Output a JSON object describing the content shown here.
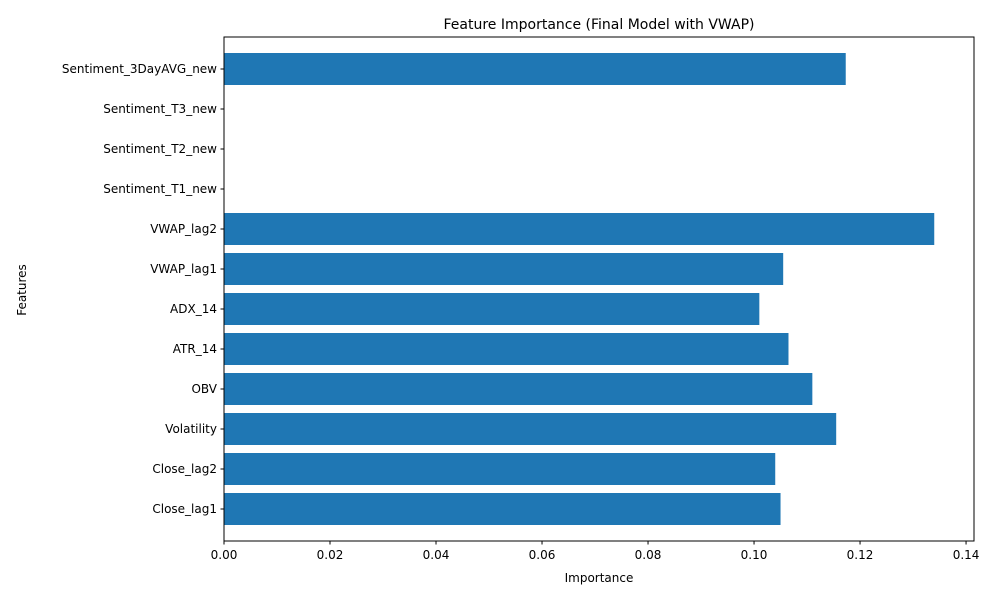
{
  "chart_data": {
    "type": "bar",
    "orientation": "horizontal",
    "title": "Feature Importance (Final Model with VWAP)",
    "xlabel": "Importance",
    "ylabel": "Features",
    "xlim": [
      0,
      0.1415
    ],
    "xticks": [
      0.0,
      0.02,
      0.04,
      0.06,
      0.08,
      0.1,
      0.12,
      0.14
    ],
    "xtick_labels": [
      "0.00",
      "0.02",
      "0.04",
      "0.06",
      "0.08",
      "0.10",
      "0.12",
      "0.14"
    ],
    "grid": false,
    "bar_color": "#1f77b4",
    "categories": [
      "Close_lag1",
      "Close_lag2",
      "Volatility",
      "OBV",
      "ATR_14",
      "ADX_14",
      "VWAP_lag1",
      "VWAP_lag2",
      "Sentiment_T1_new",
      "Sentiment_T2_new",
      "Sentiment_T3_new",
      "Sentiment_3DayAVG_new"
    ],
    "values": [
      0.105,
      0.104,
      0.1155,
      0.111,
      0.1065,
      0.101,
      0.1055,
      0.134,
      0.0,
      0.0,
      0.0,
      0.1173
    ]
  }
}
